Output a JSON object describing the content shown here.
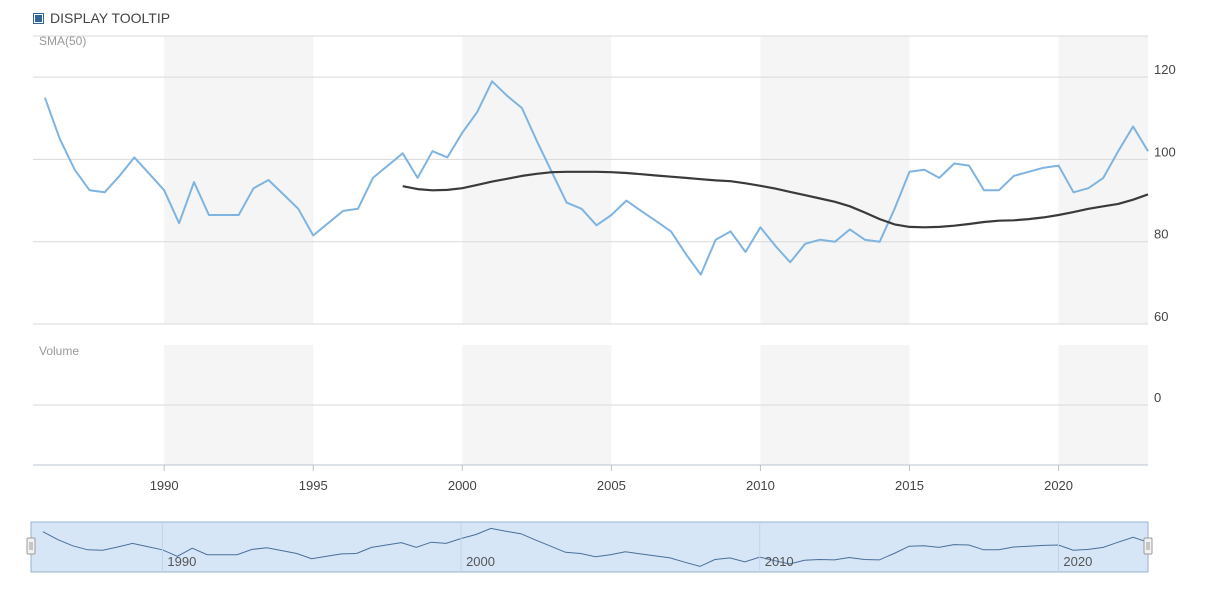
{
  "tooltip_toggle": {
    "label": "DISPLAY TOOLTIP",
    "checked": true
  },
  "colors": {
    "price_line": "#7fb4e0",
    "sma_line": "#3a3a3a",
    "band": "#f5f5f5",
    "grid": "#d9d9d9",
    "navigator_fill": "#d6e6f6",
    "navigator_border": "#9ab3cc",
    "navigator_line": "#4a6f9a"
  },
  "chart_data": {
    "type": "line",
    "panes": [
      {
        "name": "price",
        "label": "SMA(50)",
        "ylim": [
          60,
          130
        ],
        "yticks": [
          60,
          80,
          100,
          120
        ]
      },
      {
        "name": "volume",
        "label": "Volume",
        "ylim": [
          -1,
          1
        ],
        "yticks": [
          0
        ]
      }
    ],
    "xlim": [
      1985.6,
      2023.0
    ],
    "xticks": [
      1990,
      1995,
      2000,
      2005,
      2010,
      2015,
      2020
    ],
    "xtick_labels": [
      "1990",
      "1995",
      "2000",
      "2005",
      "2010",
      "2015",
      "2020"
    ],
    "shaded_bands": [
      [
        1990,
        1995
      ],
      [
        2000,
        2005
      ],
      [
        2010,
        2015
      ],
      [
        2020,
        2023
      ]
    ],
    "series": [
      {
        "key": "price",
        "x": [
          1986.0,
          1986.5,
          1987.0,
          1987.5,
          1988.0,
          1988.5,
          1989.0,
          1989.5,
          1990.0,
          1990.5,
          1991.0,
          1991.5,
          1992.0,
          1992.5,
          1993.0,
          1993.5,
          1994.0,
          1994.5,
          1995.0,
          1995.5,
          1996.0,
          1996.5,
          1997.0,
          1997.5,
          1998.0,
          1998.5,
          1999.0,
          1999.5,
          2000.0,
          2000.5,
          2001.0,
          2001.5,
          2002.0,
          2002.5,
          2003.0,
          2003.5,
          2004.0,
          2004.5,
          2005.0,
          2005.5,
          2006.0,
          2006.5,
          2007.0,
          2007.5,
          2008.0,
          2008.5,
          2009.0,
          2009.5,
          2010.0,
          2010.5,
          2011.0,
          2011.5,
          2012.0,
          2012.5,
          2013.0,
          2013.5,
          2014.0,
          2014.5,
          2015.0,
          2015.5,
          2016.0,
          2016.5,
          2017.0,
          2017.5,
          2018.0,
          2018.5,
          2019.0,
          2019.5,
          2020.0,
          2020.5,
          2021.0,
          2021.5,
          2022.0,
          2022.5,
          2023.0
        ],
        "values": [
          115,
          105,
          97.5,
          92.5,
          92,
          96,
          100.5,
          96.5,
          92.5,
          84.5,
          94.5,
          86.5,
          86.5,
          86.5,
          93,
          95,
          91.5,
          88,
          81.5,
          84.5,
          87.5,
          88,
          95.5,
          98.5,
          101.5,
          95.5,
          102,
          100.5,
          106.5,
          111.5,
          119,
          115.5,
          112.5,
          104.5,
          97,
          89.5,
          88,
          84,
          86.5,
          90,
          87.5,
          85,
          82.5,
          77,
          72,
          80.5,
          82.5,
          77.5,
          83.5,
          79,
          75,
          79.5,
          80.5,
          80,
          83,
          80.5,
          80,
          88,
          97,
          97.5,
          95.5,
          99,
          98.5,
          92.5,
          92.5,
          96,
          97,
          98,
          98.5,
          92,
          93,
          95.5,
          102,
          108,
          102
        ]
      },
      {
        "key": "sma",
        "name": "SMA(50)",
        "x": [
          1998.0,
          1998.5,
          1999.0,
          1999.5,
          2000.0,
          2000.5,
          2001.0,
          2001.5,
          2002.0,
          2002.5,
          2003.0,
          2003.5,
          2004.0,
          2004.5,
          2005.0,
          2005.5,
          2006.0,
          2006.5,
          2007.0,
          2007.5,
          2008.0,
          2008.5,
          2009.0,
          2009.5,
          2010.0,
          2010.5,
          2011.0,
          2011.5,
          2012.0,
          2012.5,
          2013.0,
          2013.5,
          2014.0,
          2014.5,
          2015.0,
          2015.5,
          2016.0,
          2016.5,
          2017.0,
          2017.5,
          2018.0,
          2018.5,
          2019.0,
          2019.5,
          2020.0,
          2020.5,
          2021.0,
          2021.5,
          2022.0,
          2022.5,
          2023.0
        ],
        "values": [
          93.5,
          92.8,
          92.5,
          92.6,
          93,
          93.8,
          94.6,
          95.3,
          96,
          96.5,
          96.9,
          97,
          97,
          97,
          96.9,
          96.7,
          96.4,
          96.1,
          95.8,
          95.5,
          95.2,
          94.9,
          94.7,
          94.2,
          93.6,
          92.9,
          92.1,
          91.3,
          90.5,
          89.7,
          88.6,
          87.1,
          85.5,
          84.2,
          83.6,
          83.5,
          83.6,
          83.9,
          84.3,
          84.8,
          85.1,
          85.2,
          85.5,
          85.9,
          86.5,
          87.2,
          88,
          88.6,
          89.2,
          90.2,
          91.5
        ]
      }
    ],
    "navigator": {
      "tick_labels": [
        "1990",
        "2000",
        "2010",
        "2020"
      ],
      "tick_values": [
        1990,
        2000,
        2010,
        2020
      ]
    }
  }
}
